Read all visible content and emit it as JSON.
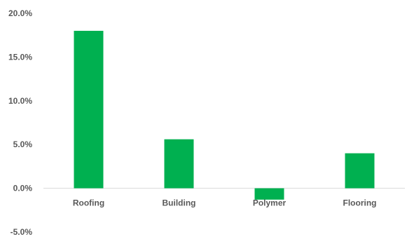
{
  "chart_data": {
    "type": "bar",
    "categories": [
      "Roofing",
      "Building",
      "Polymer",
      "Flooring"
    ],
    "values": [
      18.0,
      5.6,
      -1.3,
      4.0
    ],
    "ylim": [
      -5.0,
      20.0
    ],
    "yticks": [
      "-5.0%",
      "0.0%",
      "5.0%",
      "10.0%",
      "15.0%",
      "20.0%"
    ],
    "ytick_values": [
      -5.0,
      0.0,
      5.0,
      10.0,
      15.0,
      20.0
    ],
    "title": "",
    "xlabel": "",
    "ylabel": "",
    "grid": false,
    "legend": "none",
    "colors": {
      "bar": "#00b050",
      "axis": "#d9d9d9",
      "text": "#595959"
    }
  }
}
